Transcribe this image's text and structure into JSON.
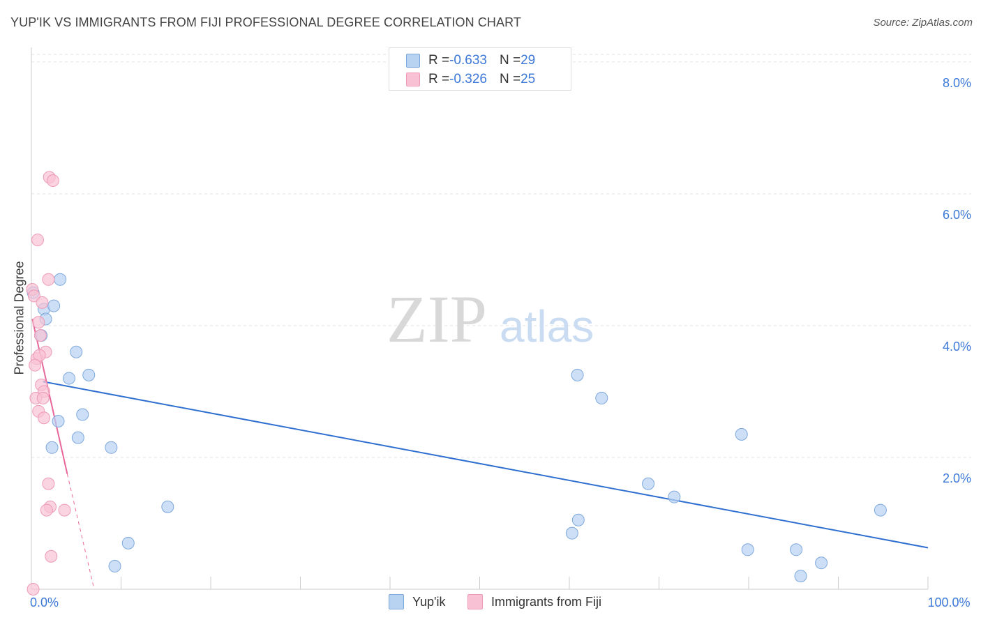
{
  "title": "YUP'IK VS IMMIGRANTS FROM FIJI PROFESSIONAL DEGREE CORRELATION CHART",
  "source": "Source: ZipAtlas.com",
  "watermark": {
    "zip": "ZIP",
    "atlas": "atlas"
  },
  "colors": {
    "blue_fill": "#b8d2f2",
    "blue_stroke": "#7ea8dc",
    "blue_line": "#2f6fd0",
    "pink_fill": "#f8c2d4",
    "pink_stroke": "#ee9ab6",
    "pink_line": "#e8679a",
    "grid": "#e2e2e2",
    "tick_text": "#3b78d8"
  },
  "legend": {
    "rows": [
      {
        "r_label": "R = ",
        "r_value": "-0.633",
        "n_label": "N = ",
        "n_value": "29"
      },
      {
        "r_label": "R = ",
        "r_value": "-0.326",
        "n_label": "N = ",
        "n_value": "25"
      }
    ]
  },
  "bottom_legend": [
    "Yup'ik",
    "Immigrants from Fiji"
  ],
  "chart_data": {
    "type": "scatter",
    "title": "YUP'IK VS IMMIGRANTS FROM FIJI PROFESSIONAL DEGREE CORRELATION CHART",
    "xlabel": "",
    "ylabel": "Professional Degree",
    "xlim": [
      0,
      100
    ],
    "ylim": [
      0,
      8.2
    ],
    "x_tick_labels": [
      {
        "value": 0,
        "label": "0.0%"
      },
      {
        "value": 100,
        "label": "100.0%"
      }
    ],
    "y_ticks": [
      {
        "value": 2,
        "label": "2.0%"
      },
      {
        "value": 4,
        "label": "4.0%"
      },
      {
        "value": 6,
        "label": "6.0%"
      },
      {
        "value": 8,
        "label": "8.0%"
      }
    ],
    "series": [
      {
        "name": "Yup'ik",
        "R": -0.633,
        "N": 29,
        "points": [
          {
            "x": 0.2,
            "y": 4.5
          },
          {
            "x": 1.4,
            "y": 4.25
          },
          {
            "x": 1.6,
            "y": 4.1
          },
          {
            "x": 3.2,
            "y": 4.7
          },
          {
            "x": 1.1,
            "y": 3.85
          },
          {
            "x": 2.5,
            "y": 4.3
          },
          {
            "x": 5.0,
            "y": 3.6
          },
          {
            "x": 4.2,
            "y": 3.2
          },
          {
            "x": 6.4,
            "y": 3.25
          },
          {
            "x": 5.7,
            "y": 2.65
          },
          {
            "x": 3.0,
            "y": 2.55
          },
          {
            "x": 5.2,
            "y": 2.3
          },
          {
            "x": 2.3,
            "y": 2.15
          },
          {
            "x": 8.9,
            "y": 2.15
          },
          {
            "x": 15.2,
            "y": 1.25
          },
          {
            "x": 10.8,
            "y": 0.7
          },
          {
            "x": 9.3,
            "y": 0.35
          },
          {
            "x": 60.9,
            "y": 3.25
          },
          {
            "x": 63.6,
            "y": 2.9
          },
          {
            "x": 79.2,
            "y": 2.35
          },
          {
            "x": 68.8,
            "y": 1.6
          },
          {
            "x": 71.7,
            "y": 1.4
          },
          {
            "x": 61.0,
            "y": 1.05
          },
          {
            "x": 60.3,
            "y": 0.85
          },
          {
            "x": 79.9,
            "y": 0.6
          },
          {
            "x": 85.3,
            "y": 0.6
          },
          {
            "x": 88.1,
            "y": 0.4
          },
          {
            "x": 85.8,
            "y": 0.2
          },
          {
            "x": 94.7,
            "y": 1.2
          }
        ],
        "trend": {
          "x0": 1.3,
          "y0": 3.15,
          "x1": 100,
          "y1": 0.63
        }
      },
      {
        "name": "Immigrants from Fiji",
        "R": -0.326,
        "N": 25,
        "points": [
          {
            "x": 2.0,
            "y": 6.25
          },
          {
            "x": 2.4,
            "y": 6.2
          },
          {
            "x": 0.7,
            "y": 5.3
          },
          {
            "x": 1.9,
            "y": 4.7
          },
          {
            "x": 0.1,
            "y": 4.55
          },
          {
            "x": 0.3,
            "y": 4.45
          },
          {
            "x": 1.2,
            "y": 4.35
          },
          {
            "x": 0.8,
            "y": 4.05
          },
          {
            "x": 1.0,
            "y": 3.85
          },
          {
            "x": 1.6,
            "y": 3.6
          },
          {
            "x": 0.6,
            "y": 3.5
          },
          {
            "x": 0.9,
            "y": 3.55
          },
          {
            "x": 0.4,
            "y": 3.4
          },
          {
            "x": 1.1,
            "y": 3.1
          },
          {
            "x": 1.4,
            "y": 3.0
          },
          {
            "x": 0.5,
            "y": 2.9
          },
          {
            "x": 1.3,
            "y": 2.9
          },
          {
            "x": 0.8,
            "y": 2.7
          },
          {
            "x": 1.4,
            "y": 2.6
          },
          {
            "x": 1.9,
            "y": 1.6
          },
          {
            "x": 2.1,
            "y": 1.25
          },
          {
            "x": 1.7,
            "y": 1.2
          },
          {
            "x": 3.7,
            "y": 1.2
          },
          {
            "x": 2.2,
            "y": 0.5
          },
          {
            "x": 0.2,
            "y": 0.0
          }
        ],
        "trend": {
          "x0": 0.1,
          "y0": 4.1,
          "x1": 4.0,
          "y1": 1.75,
          "dash_x1": 7.0,
          "dash_y1": 0.0
        }
      }
    ]
  }
}
